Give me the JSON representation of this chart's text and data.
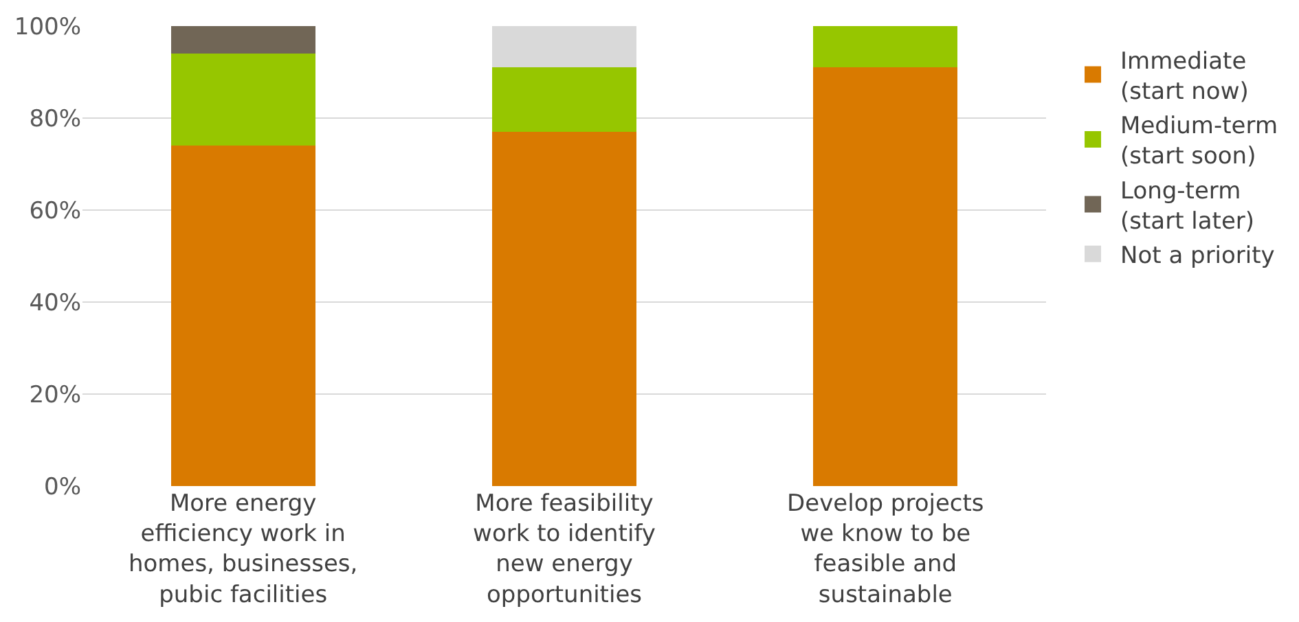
{
  "chart_data": {
    "type": "bar",
    "stacked": true,
    "categories": [
      "More energy\nefficiency work in\nhomes, businesses,\npubic facilities",
      "More feasibility\nwork to identify\nnew energy\nopportunities",
      "Develop projects\nwe know to be\nfeasible and\nsustainable"
    ],
    "series": [
      {
        "name": "Immediate\n(start now)",
        "color": "#d97a00",
        "values": [
          74,
          77,
          91
        ]
      },
      {
        "name": "Medium-term\n(start soon)",
        "color": "#96c600",
        "values": [
          20,
          14,
          9
        ]
      },
      {
        "name": "Long-term\n(start later)",
        "color": "#716656",
        "values": [
          6,
          0,
          0
        ]
      },
      {
        "name": "Not a priority",
        "color": "#d9d9d9",
        "values": [
          0,
          9,
          0
        ]
      }
    ],
    "ylim": [
      0,
      100
    ],
    "yticks": [
      {
        "value": 0,
        "label": "0%"
      },
      {
        "value": 20,
        "label": "20%"
      },
      {
        "value": 40,
        "label": "40%"
      },
      {
        "value": 60,
        "label": "60%"
      },
      {
        "value": 80,
        "label": "80%"
      },
      {
        "value": 100,
        "label": "100%"
      }
    ],
    "grid": "y",
    "legend": "right"
  }
}
